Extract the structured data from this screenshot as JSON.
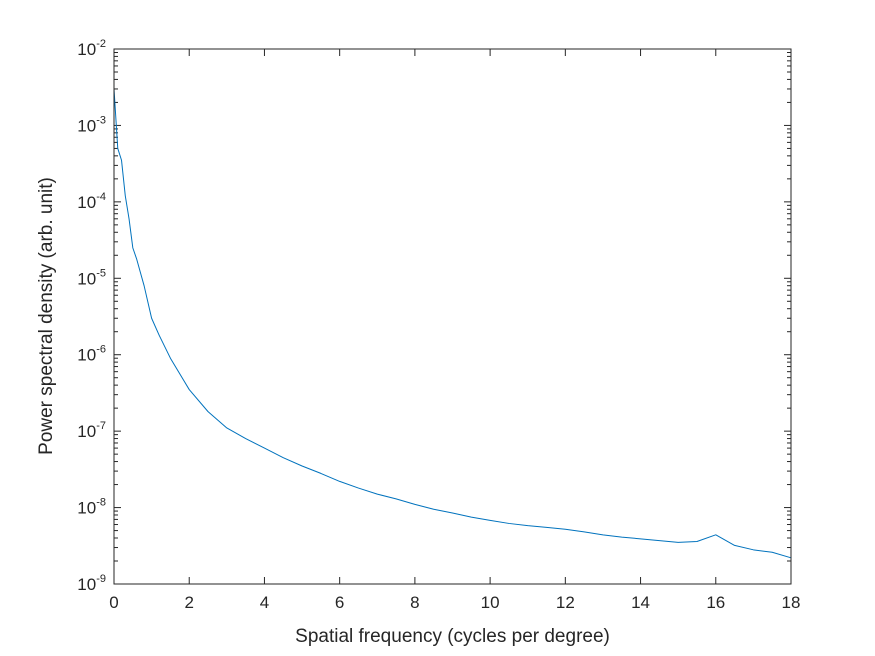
{
  "chart_data": {
    "type": "line",
    "xlabel": "Spatial frequency (cycles per degree)",
    "ylabel": "Power spectral density (arb. unit)",
    "xlim": [
      0,
      18
    ],
    "ylim": [
      1e-09,
      0.01
    ],
    "yscale": "log",
    "grid": false,
    "line_color": "#0072BD",
    "x_ticks": [
      0,
      2,
      4,
      6,
      8,
      10,
      12,
      14,
      16,
      18
    ],
    "x_tick_labels": [
      "0",
      "2",
      "4",
      "6",
      "8",
      "10",
      "12",
      "14",
      "16",
      "18"
    ],
    "y_ticks": [
      {
        "value": 1e-09,
        "base": "10",
        "exp": "-9"
      },
      {
        "value": 1e-08,
        "base": "10",
        "exp": "-8"
      },
      {
        "value": 1e-07,
        "base": "10",
        "exp": "-7"
      },
      {
        "value": 1e-06,
        "base": "10",
        "exp": "-6"
      },
      {
        "value": 1e-05,
        "base": "10",
        "exp": "-5"
      },
      {
        "value": 0.0001,
        "base": "10",
        "exp": "-4"
      },
      {
        "value": 0.001,
        "base": "10",
        "exp": "-3"
      },
      {
        "value": 0.01,
        "base": "10",
        "exp": "-2"
      }
    ],
    "series": [
      {
        "x": [
          0,
          0.1,
          0.2,
          0.3,
          0.4,
          0.5,
          0.6,
          0.7,
          0.8,
          1.0,
          1.2,
          1.5,
          2.0,
          2.5,
          3.0,
          3.5,
          4.0,
          4.5,
          5.0,
          5.5,
          6.0,
          6.5,
          7.0,
          7.5,
          8.0,
          8.5,
          9.0,
          9.5,
          10.0,
          10.5,
          11.0,
          11.5,
          12.0,
          12.5,
          13.0,
          13.5,
          14.0,
          14.5,
          15.0,
          15.5,
          16.0,
          16.5,
          17.0,
          17.5,
          18.0
        ],
        "y": [
          0.003,
          0.0005,
          0.00035,
          0.00012,
          6e-05,
          2.5e-05,
          1.8e-05,
          1.2e-05,
          8e-06,
          3e-06,
          1.8e-06,
          9e-07,
          3.5e-07,
          1.8e-07,
          1.1e-07,
          8e-08,
          6e-08,
          4.5e-08,
          3.5e-08,
          2.8e-08,
          2.2e-08,
          1.8e-08,
          1.5e-08,
          1.3e-08,
          1.1e-08,
          9.5e-09,
          8.5e-09,
          7.5e-09,
          6.8e-09,
          6.2e-09,
          5.8e-09,
          5.5e-09,
          5.2e-09,
          4.8e-09,
          4.4e-09,
          4.1e-09,
          3.9e-09,
          3.7e-09,
          3.5e-09,
          3.6e-09,
          4.4e-09,
          3.2e-09,
          2.8e-09,
          2.6e-09,
          2.2e-09
        ]
      }
    ]
  }
}
